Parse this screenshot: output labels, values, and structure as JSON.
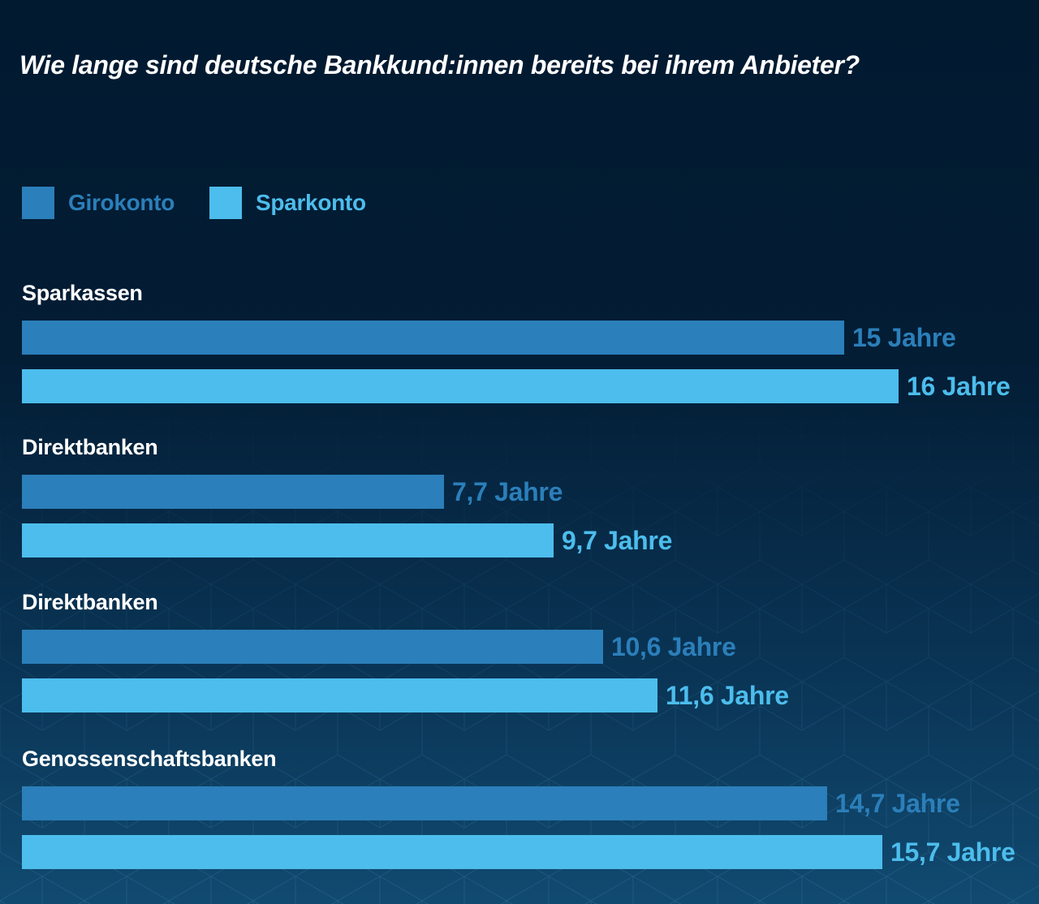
{
  "chart_data": {
    "type": "bar",
    "orientation": "horizontal",
    "title": "Wie lange sind deutsche Bankkund:innen bereits bei ihrem Anbieter?",
    "xlabel": "",
    "ylabel": "",
    "xlim": [
      0,
      16
    ],
    "grid": false,
    "legend_position": "top-left",
    "colors": {
      "Girokonto": "#2b7fba",
      "Sparkonto": "#4cbdec"
    },
    "categories": [
      "Sparkassen",
      "Direktbanken",
      "Direktbanken",
      "Genossenschaftsbanken"
    ],
    "series": [
      {
        "name": "Girokonto",
        "values": [
          15,
          7.7,
          10.6,
          14.7
        ],
        "labels": [
          "15 Jahre",
          "7,7 Jahre",
          "10,6 Jahre",
          "14,7 Jahre"
        ]
      },
      {
        "name": "Sparkonto",
        "values": [
          16,
          9.7,
          11.6,
          15.7
        ],
        "labels": [
          "16 Jahre",
          "9,7 Jahre",
          "11,6 Jahre",
          "15,7 Jahre"
        ]
      }
    ]
  }
}
